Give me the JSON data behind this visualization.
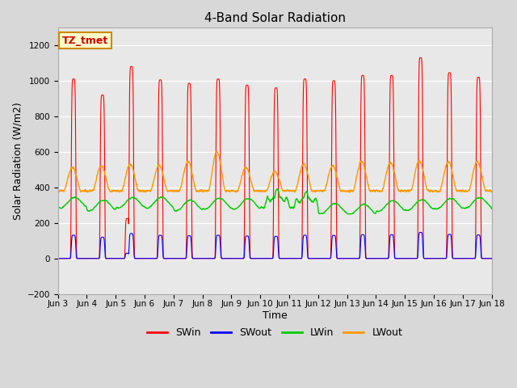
{
  "title": "4-Band Solar Radiation",
  "xlabel": "Time",
  "ylabel": "Solar Radiation (W/m2)",
  "ylim": [
    -200,
    1300
  ],
  "yticks": [
    -200,
    0,
    200,
    400,
    600,
    800,
    1000,
    1200
  ],
  "legend_labels": [
    "SWin",
    "SWout",
    "LWin",
    "LWout"
  ],
  "legend_colors": [
    "#ff0000",
    "#0000ff",
    "#00cc00",
    "#ff9900"
  ],
  "annotation_text": "TZ_tmet",
  "annotation_bg": "#ffffcc",
  "annotation_border": "#cc8800",
  "annotation_text_color": "#cc0000",
  "xtick_labels": [
    "Jun 3",
    "Jun 4",
    "Jun 5",
    "Jun 6",
    "Jun 7",
    "Jun 8",
    "Jun 9",
    "Jun 10",
    "Jun 11",
    "Jun 12",
    "Jun 13",
    "Jun 14",
    "Jun 15",
    "Jun 16",
    "Jun 17",
    "Jun 18"
  ],
  "bg_color": "#d8d8d8",
  "plot_bg": "#e8e8e8",
  "grid_color": "#ffffff",
  "num_days": 15,
  "peak_vals_sw": [
    1010,
    920,
    1080,
    1005,
    985,
    1010,
    975,
    960,
    1010,
    1000,
    1030,
    1030,
    1130,
    1045,
    1020
  ],
  "peak_vals_lwout": [
    510,
    520,
    530,
    525,
    545,
    600,
    510,
    490,
    530,
    520,
    545,
    540,
    550,
    545,
    545
  ]
}
